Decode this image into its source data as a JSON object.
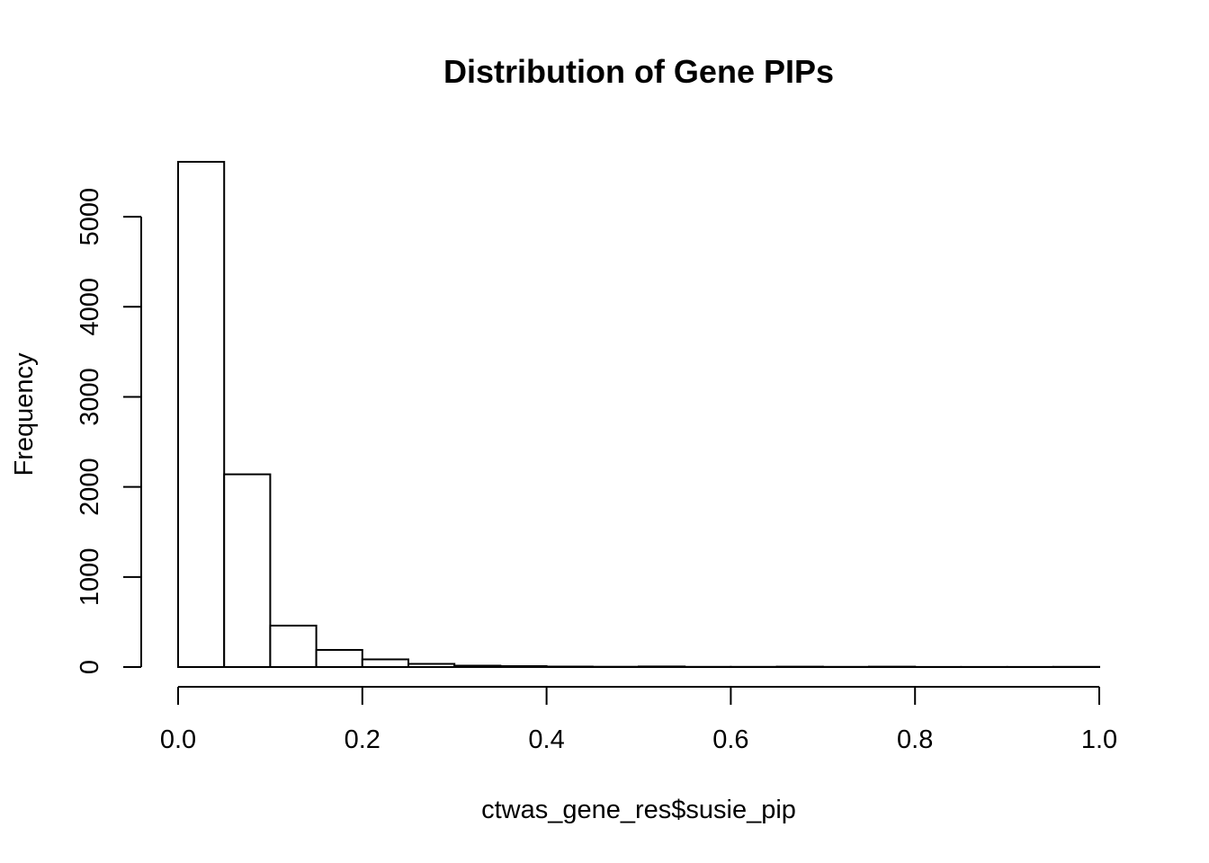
{
  "chart_data": {
    "type": "bar",
    "title": "Distribution of Gene PIPs",
    "xlabel": "ctwas_gene_res$susie_pip",
    "ylabel": "Frequency",
    "bin_edges": [
      0.0,
      0.05,
      0.1,
      0.15,
      0.2,
      0.25,
      0.3,
      0.35,
      0.4,
      0.45,
      0.5,
      0.55,
      0.6,
      0.65,
      0.7,
      0.75,
      0.8,
      0.85,
      0.9,
      0.95,
      1.0
    ],
    "values": [
      5610,
      2140,
      460,
      190,
      85,
      35,
      15,
      10,
      5,
      3,
      6,
      2,
      2,
      4,
      2,
      4,
      1,
      1,
      1,
      2
    ],
    "xlim": [
      0.0,
      1.0
    ],
    "ylim": [
      0,
      5610
    ],
    "x_ticks": [
      0.0,
      0.2,
      0.4,
      0.6,
      0.8,
      1.0
    ],
    "x_tick_labels": [
      "0.0",
      "0.2",
      "0.4",
      "0.6",
      "0.8",
      "1.0"
    ],
    "y_ticks": [
      0,
      1000,
      2000,
      3000,
      4000,
      5000
    ],
    "y_tick_labels": [
      "0",
      "1000",
      "2000",
      "3000",
      "4000",
      "5000"
    ],
    "grid": false,
    "legend": "none"
  }
}
